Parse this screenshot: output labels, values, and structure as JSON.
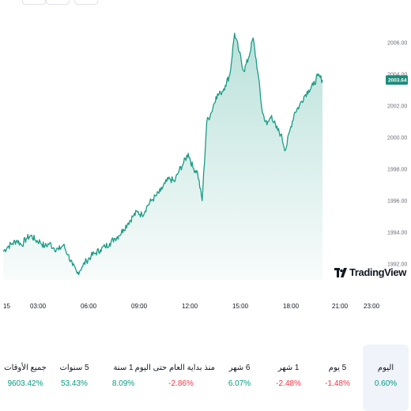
{
  "chart_data": {
    "type": "area",
    "title": "",
    "xlabel": "",
    "ylabel": "",
    "x_ticks": [
      "15",
      "03:00",
      "06:00",
      "09:00",
      "12:00",
      "15:00",
      "18:00",
      "21:00",
      "23:00"
    ],
    "y_ticks": [
      "2006.00",
      "2004.00",
      "2002.00",
      "2000.00",
      "1998.00",
      "1996.00",
      "1994.00",
      "1992.00"
    ],
    "ylim": [
      1991.0,
      2007.0
    ],
    "last_price": "2003.64",
    "series": [
      {
        "values": [
          1992.8,
          1993.1,
          1993.3,
          1993.5,
          1993.2,
          1993.6,
          1993.8,
          1993.5,
          1993.4,
          1993.1,
          1993.3,
          1993.0,
          1992.9,
          1993.2,
          1992.6,
          1991.9,
          1991.4,
          1991.8,
          1992.2,
          1992.5,
          1992.7,
          1992.9,
          1993.1,
          1993.3,
          1993.6,
          1993.8,
          1994.2,
          1994.6,
          1995.0,
          1995.3,
          1995.1,
          1995.6,
          1996.0,
          1996.3,
          1996.6,
          1997.1,
          1997.4,
          1997.2,
          1997.9,
          1998.4,
          1999.0,
          1998.1,
          1997.8,
          1996.0,
          2001.0,
          2001.6,
          2002.6,
          2002.8,
          2003.3,
          2004.0,
          2006.6,
          2005.4,
          2004.2,
          2005.0,
          2006.3,
          2004.2,
          2001.6,
          2000.8,
          2001.4,
          2000.6,
          2000.2,
          1999.2,
          2000.5,
          2001.6,
          2002.0,
          2002.6,
          2003.0,
          2003.3,
          2003.9,
          2003.64
        ],
        "color": "#1b9c85"
      }
    ],
    "legend": "none",
    "grid": false
  },
  "periods": [
    {
      "label": "اليوم",
      "value": "0.60%",
      "sign": "pos",
      "active": true
    },
    {
      "label": "5 يوم",
      "value": "-1.48%",
      "sign": "neg",
      "active": false
    },
    {
      "label": "1 شهر",
      "value": "-2.48%",
      "sign": "neg",
      "active": false
    },
    {
      "label": "6 شهر",
      "value": "6.07%",
      "sign": "pos",
      "active": false
    },
    {
      "label": "منذ بداية العام حتى اليوم",
      "value": "-2.86%",
      "sign": "neg",
      "active": false
    },
    {
      "label": "1 سنة",
      "value": "8.09%",
      "sign": "pos",
      "active": false
    },
    {
      "label": "5 سنوات",
      "value": "53.43%",
      "sign": "pos",
      "active": false
    },
    {
      "label": "جميع الأوقات",
      "value": "9603.42%",
      "sign": "pos",
      "active": false
    }
  ],
  "logo": {
    "text": "TradingView",
    "icon": "tradingview-logo-icon"
  },
  "colors": {
    "line": "#1b9c85",
    "positive": "#089981",
    "negative": "#f23645",
    "tag": "#1b8c7a",
    "active_bg": "#f0f3fa"
  }
}
